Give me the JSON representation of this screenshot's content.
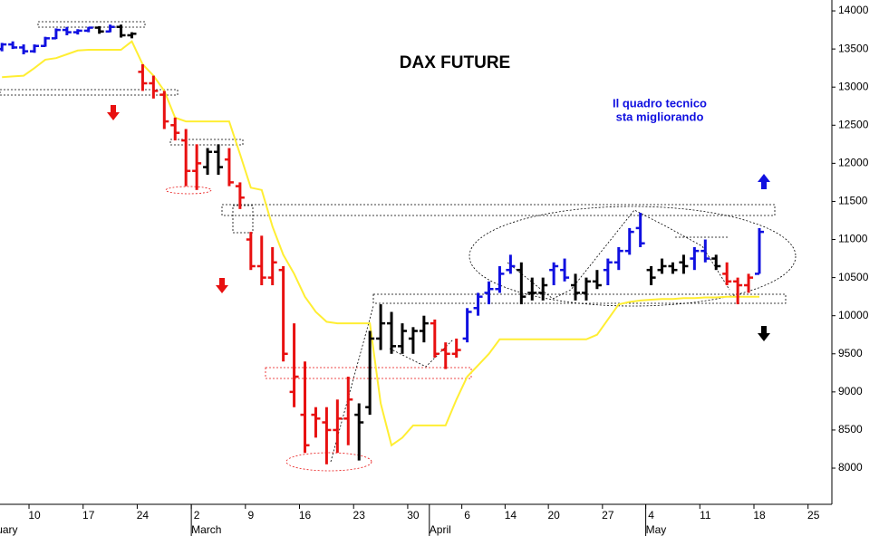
{
  "chart_data": {
    "type": "ohlc",
    "title": "DAX FUTURE",
    "annotation": [
      "Il quadro tecnico",
      "sta migliorando"
    ],
    "categories": [
      null,
      null,
      null,
      "10",
      null,
      null,
      null,
      null,
      "17",
      null,
      null,
      null,
      null,
      "24",
      null,
      null,
      null,
      null,
      "2",
      null,
      null,
      null,
      null,
      "9",
      null,
      null,
      null,
      null,
      "16",
      null,
      null,
      null,
      null,
      "23",
      null,
      null,
      null,
      null,
      "30",
      null,
      null,
      null,
      null,
      "6",
      null,
      null,
      null,
      "14",
      null,
      null,
      null,
      "20",
      null,
      null,
      null,
      null,
      "27",
      null,
      null,
      null,
      "4",
      null,
      null,
      null,
      null,
      "11",
      null,
      null,
      null,
      null,
      "18",
      null,
      null,
      null,
      null,
      "25",
      null
    ],
    "month_labels": [
      "uary",
      null,
      null,
      null,
      null,
      null,
      null,
      null,
      null,
      null,
      null,
      null,
      null,
      null,
      null,
      null,
      null,
      null,
      "March",
      null,
      null,
      null,
      null,
      null,
      null,
      null,
      null,
      null,
      null,
      null,
      null,
      null,
      null,
      null,
      null,
      null,
      null,
      null,
      null,
      null,
      "April",
      null,
      null,
      null,
      null,
      null,
      null,
      null,
      null,
      null,
      null,
      null,
      null,
      null,
      null,
      null,
      null,
      null,
      null,
      null,
      "May",
      null,
      null,
      null,
      null,
      null,
      null,
      null,
      null,
      null,
      null,
      null,
      null,
      null,
      null,
      null,
      null
    ],
    "open": [
      13500,
      13560,
      13520,
      13470,
      13540,
      13640,
      13750,
      13720,
      13740,
      13780,
      13730,
      13790,
      13680,
      13200,
      13050,
      12900,
      12500,
      12300,
      11900,
      11950,
      12150,
      12050,
      11700,
      11000,
      10650,
      10500,
      10600,
      9000,
      8700,
      8700,
      8600,
      8500,
      8650,
      8700,
      8800,
      9700,
      9900,
      9600,
      9700,
      9800,
      9900,
      9550,
      9500,
      9700,
      10100,
      10300,
      10350,
      10600,
      10600,
      10300,
      10300,
      10600,
      10600,
      10400,
      10300,
      10450,
      10600,
      10700,
      10850,
      11150,
      10600,
      10600,
      10650,
      10700,
      10750,
      10850,
      10750,
      10550,
      10450,
      10400,
      10550,
      null,
      null,
      null,
      null,
      null,
      null
    ],
    "high": [
      13580,
      13600,
      13560,
      13560,
      13660,
      13770,
      13790,
      13760,
      13790,
      13800,
      13820,
      13820,
      13720,
      13300,
      13150,
      12950,
      12600,
      12450,
      12250,
      12200,
      12250,
      12200,
      11750,
      11100,
      11050,
      10900,
      10650,
      9900,
      9400,
      8800,
      8800,
      8900,
      9200,
      8850,
      9800,
      10150,
      10050,
      9900,
      9850,
      10000,
      9950,
      9650,
      9700,
      10100,
      10300,
      10450,
      10650,
      10800,
      10700,
      10500,
      10500,
      10700,
      10750,
      10550,
      10500,
      10600,
      10750,
      10900,
      11150,
      11350,
      10650,
      10750,
      10700,
      10800,
      10900,
      11000,
      10800,
      10700,
      10500,
      10550,
      11150,
      null,
      null,
      null,
      null,
      null,
      null
    ],
    "low": [
      13470,
      13500,
      13430,
      13450,
      13530,
      13630,
      13680,
      13690,
      13720,
      13700,
      13720,
      13650,
      13640,
      12950,
      12850,
      12450,
      12300,
      11700,
      11650,
      11850,
      11850,
      11700,
      11400,
      10600,
      10400,
      10400,
      9400,
      8800,
      8200,
      8400,
      8050,
      8200,
      8300,
      8100,
      8700,
      9550,
      9500,
      9500,
      9500,
      9650,
      9450,
      9300,
      9450,
      9650,
      10000,
      10150,
      10300,
      10550,
      10150,
      10200,
      10200,
      10400,
      10450,
      10200,
      10200,
      10350,
      10400,
      10600,
      10800,
      10900,
      10400,
      10550,
      10550,
      10550,
      10600,
      10700,
      10600,
      10400,
      10150,
      10300,
      10550,
      null,
      null,
      null,
      null,
      null,
      null
    ],
    "close": [
      13560,
      13520,
      13470,
      13540,
      13640,
      13750,
      13720,
      13740,
      13780,
      13730,
      13790,
      13680,
      13700,
      13050,
      12950,
      12550,
      12400,
      11900,
      12000,
      12150,
      11950,
      11750,
      11550,
      10650,
      10500,
      10700,
      9500,
      9200,
      8300,
      8650,
      8500,
      8650,
      8900,
      8600,
      9700,
      9900,
      9600,
      9800,
      9800,
      9900,
      9500,
      9500,
      9550,
      10050,
      10250,
      10350,
      10550,
      10650,
      10250,
      10300,
      10400,
      10650,
      10500,
      10300,
      10450,
      10400,
      10700,
      10850,
      11100,
      10950,
      10500,
      10650,
      10600,
      10650,
      10850,
      10750,
      10650,
      10450,
      10400,
      10500,
      11100,
      null,
      null,
      null,
      null,
      null,
      null
    ],
    "colors": [
      "#1010e0",
      "#1010e0",
      "#1010e0",
      "#1010e0",
      "#1010e0",
      "#1010e0",
      "#1010e0",
      "#1010e0",
      "#1010e0",
      "#000000",
      "#1010e0",
      "#000000",
      "#000000",
      "#e81010",
      "#e81010",
      "#e81010",
      "#e81010",
      "#e81010",
      "#e81010",
      "#000000",
      "#000000",
      "#e81010",
      "#e81010",
      "#e81010",
      "#e81010",
      "#e81010",
      "#e81010",
      "#e81010",
      "#e81010",
      "#e81010",
      "#e81010",
      "#e81010",
      "#e81010",
      "#000000",
      "#000000",
      "#000000",
      "#000000",
      "#000000",
      "#000000",
      "#000000",
      "#e81010",
      "#e81010",
      "#e81010",
      "#1010e0",
      "#1010e0",
      "#1010e0",
      "#1010e0",
      "#1010e0",
      "#000000",
      "#000000",
      "#000000",
      "#1010e0",
      "#1010e0",
      "#000000",
      "#000000",
      "#000000",
      "#1010e0",
      "#1010e0",
      "#1010e0",
      "#1010e0",
      "#000000",
      "#000000",
      "#000000",
      "#000000",
      "#1010e0",
      "#1010e0",
      "#000000",
      "#e81010",
      "#e81010",
      "#e81010",
      "#1010e0",
      null,
      null,
      null,
      null,
      null,
      null
    ],
    "line": {
      "color": "#ffee33",
      "values": [
        13130,
        13140,
        13150,
        13250,
        13360,
        13380,
        13430,
        13480,
        13490,
        13490,
        13490,
        13490,
        13600,
        13300,
        13150,
        12950,
        12600,
        12550,
        12550,
        12550,
        12550,
        12550,
        12120,
        11680,
        11650,
        11170,
        10800,
        10550,
        10250,
        10050,
        9920,
        9900,
        9900,
        9900,
        9900,
        8850,
        8300,
        8400,
        8560,
        8560,
        8560,
        8560,
        8900,
        9200,
        9350,
        9500,
        9690,
        9690,
        9690,
        9690,
        9690,
        9690,
        9690,
        9690,
        9690,
        9750,
        9950,
        10150,
        10180,
        10200,
        10210,
        10220,
        10220,
        10230,
        10230,
        10240,
        10240,
        10250,
        10250,
        10250,
        10250,
        null,
        null,
        null,
        null,
        null,
        null
      ]
    },
    "ylim": [
      7525,
      14143
    ],
    "yticks": [
      8000,
      8500,
      9000,
      9500,
      10000,
      10500,
      11000,
      11500,
      12000,
      12500,
      13000,
      13500,
      14000
    ]
  }
}
